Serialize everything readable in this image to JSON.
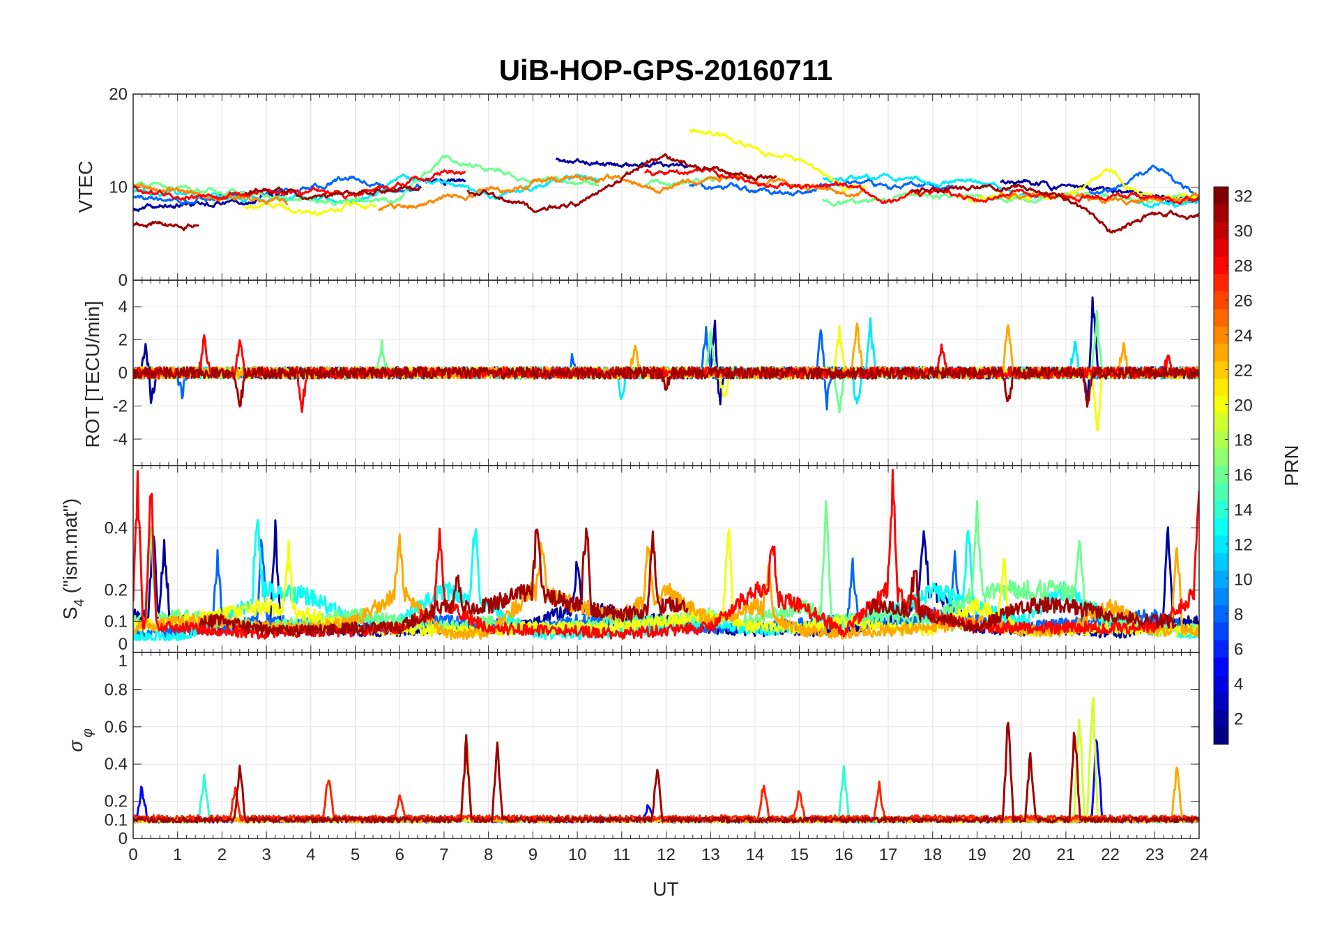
{
  "chart_data": {
    "type": "line",
    "title": "UiB-HOP-GPS-20160711",
    "xlabel": "UT",
    "xlim": [
      0,
      24
    ],
    "xticks": [
      0,
      1,
      2,
      3,
      4,
      5,
      6,
      7,
      8,
      9,
      10,
      11,
      12,
      13,
      14,
      15,
      16,
      17,
      18,
      19,
      20,
      21,
      22,
      23,
      24
    ],
    "grid": true,
    "colorbar": {
      "label": "PRN",
      "range": [
        1,
        32
      ],
      "ticks": [
        2,
        4,
        6,
        8,
        10,
        12,
        14,
        16,
        18,
        20,
        22,
        24,
        26,
        28,
        30,
        32
      ],
      "colormap": "jet"
    },
    "panels": [
      {
        "name": "vtec",
        "ylabel": "VTEC",
        "ylim": [
          0,
          20
        ],
        "yticks": [
          0,
          10,
          20
        ],
        "noise": 0.35,
        "series": [
          {
            "prn": 2,
            "values": [
              7.5,
              8,
              8.5,
              9,
              null,
              null,
              null,
              10.5,
              null,
              null,
              13,
              12.5,
              12,
              null,
              null,
              null,
              null,
              null,
              null,
              null,
              10.5,
              10,
              9.5,
              9,
              8.5
            ]
          },
          {
            "prn": 8,
            "values": [
              9,
              8.5,
              9,
              9.5,
              10,
              11,
              10,
              null,
              null,
              null,
              null,
              null,
              null,
              10,
              9.5,
              9.5,
              10.5,
              10,
              10,
              null,
              null,
              null,
              9.5,
              12,
              9
            ]
          },
          {
            "prn": 12,
            "values": [
              9.5,
              9.5,
              8.5,
              9,
              9,
              8.5,
              11,
              10.5,
              9,
              10,
              11,
              null,
              null,
              null,
              null,
              null,
              11,
              11,
              10.5,
              11,
              9,
              null,
              null,
              8.5,
              8
            ]
          },
          {
            "prn": 16,
            "values": [
              10,
              10,
              9.5,
              9,
              8.5,
              8.5,
              9,
              13,
              12,
              11,
              10.5,
              null,
              10.5,
              11,
              null,
              null,
              8.5,
              9,
              9,
              9,
              8.5,
              9,
              9,
              8.5,
              9
            ]
          },
          {
            "prn": 20,
            "values": [
              null,
              null,
              null,
              8,
              7,
              8,
              null,
              null,
              null,
              null,
              null,
              null,
              null,
              16,
              14,
              13,
              10,
              null,
              null,
              9,
              9,
              9,
              12,
              8.5,
              9
            ]
          },
          {
            "prn": 24,
            "values": [
              10,
              9.5,
              9,
              8.5,
              null,
              null,
              8,
              9,
              9.5,
              10.5,
              11,
              11,
              10,
              11,
              11,
              10,
              9.5,
              null,
              null,
              null,
              9,
              9,
              8.5,
              8.5,
              9
            ]
          },
          {
            "prn": 28,
            "values": [
              10,
              9,
              9,
              9.5,
              9.5,
              9,
              10.5,
              11.5,
              null,
              null,
              null,
              null,
              11.5,
              11.5,
              10.5,
              10,
              10.5,
              8.5,
              9.5,
              9,
              9.5,
              9,
              9,
              9,
              8.5
            ]
          },
          {
            "prn": 31,
            "values": [
              6,
              6,
              null,
              9.5,
              9,
              9.5,
              10,
              null,
              9.5,
              7.5,
              8,
              11,
              13,
              12,
              11,
              null,
              null,
              null,
              9.5,
              10,
              10,
              9,
              5,
              7,
              7
            ]
          }
        ]
      },
      {
        "name": "rot",
        "ylabel": "ROT [TECU/min]",
        "ylim": [
          -5.6,
          5.6
        ],
        "yticks": [
          -4,
          -2,
          0,
          2,
          4
        ],
        "noise": 0.35,
        "series": [
          {
            "prn": 2,
            "base": 0,
            "peaks": [
              [
                0.3,
                2.2
              ],
              [
                0.4,
                -2
              ],
              [
                13.1,
                3.3
              ],
              [
                13.2,
                -2.4
              ],
              [
                21.6,
                5.5
              ],
              [
                21.5,
                -2.5
              ]
            ]
          },
          {
            "prn": 8,
            "base": 0,
            "peaks": [
              [
                15.5,
                3.5
              ],
              [
                15.6,
                -2.6
              ],
              [
                12.9,
                2.7
              ],
              [
                9.9,
                1
              ],
              [
                1.1,
                -1.5
              ]
            ]
          },
          {
            "prn": 12,
            "base": 0,
            "peaks": [
              [
                16.6,
                3.3
              ],
              [
                16.3,
                -2.4
              ],
              [
                21.2,
                2
              ],
              [
                11,
                -2
              ]
            ]
          },
          {
            "prn": 16,
            "base": 0,
            "peaks": [
              [
                5.6,
                2
              ],
              [
                13,
                2.5
              ],
              [
                15.9,
                -2.8
              ],
              [
                21.7,
                3.8
              ]
            ]
          },
          {
            "prn": 20,
            "base": 0,
            "peaks": [
              [
                15.9,
                3
              ],
              [
                21.7,
                -4
              ],
              [
                13.3,
                -2
              ]
            ]
          },
          {
            "prn": 23,
            "base": 0,
            "peaks": [
              [
                19.7,
                3.6
              ],
              [
                16.3,
                3.4
              ],
              [
                11.3,
                2
              ],
              [
                22.3,
                2
              ]
            ]
          },
          {
            "prn": 28,
            "base": 0,
            "peaks": [
              [
                1.6,
                2.1
              ],
              [
                2.4,
                2.1
              ],
              [
                3.8,
                -2.4
              ],
              [
                18.2,
                1.9
              ],
              [
                23.3,
                1
              ]
            ]
          },
          {
            "prn": 31,
            "base": 0,
            "peaks": [
              [
                2.4,
                -2.4
              ],
              [
                19.7,
                -2.3
              ],
              [
                21.5,
                -2.2
              ],
              [
                12,
                -1
              ]
            ]
          }
        ]
      },
      {
        "name": "s4",
        "ylabel": "S4 (\"ism.mat\")",
        "ylabel_main": "S",
        "ylabel_sub": "4",
        "ylabel_rest": " (\"ism.mat\")",
        "ylim": [
          0,
          0.6
        ],
        "yticks": [
          0,
          0.1,
          0.2,
          0.4
        ],
        "noise": 0.03,
        "series": [
          {
            "prn": 2,
            "base": [
              0.12,
              0.1,
              0.08,
              0.08,
              0.07,
              0.07,
              0.07,
              0.08,
              0.07,
              0.09,
              0.15,
              0.12,
              0.1,
              0.08,
              0.07,
              0.07,
              0.07,
              0.1,
              0.2,
              0.08,
              0.07,
              0.07,
              0.06,
              0.08,
              0.1
            ],
            "peaks": [
              [
                0.45,
                0.43
              ],
              [
                0.7,
                0.4
              ],
              [
                3.2,
                0.42
              ],
              [
                10,
                0.3
              ],
              [
                17.8,
                0.45
              ],
              [
                23.3,
                0.45
              ]
            ]
          },
          {
            "prn": 8,
            "base": [
              0.06,
              0.07,
              0.08,
              0.1,
              0.09,
              0.08,
              0.08,
              0.1,
              0.09,
              0.08,
              0.1,
              0.1,
              0.09,
              0.08,
              0.08,
              0.09,
              0.1,
              0.09,
              0.12,
              0.1,
              0.08,
              0.09,
              0.1,
              0.12,
              0.06
            ],
            "peaks": [
              [
                1.9,
                0.35
              ],
              [
                2.9,
                0.4
              ],
              [
                16.2,
                0.3
              ],
              [
                18.5,
                0.34
              ]
            ]
          },
          {
            "prn": 13,
            "base": [
              0.05,
              0.05,
              0.1,
              0.2,
              0.18,
              0.1,
              0.1,
              0.2,
              0.15,
              0.06,
              0.06,
              0.07,
              0.08,
              0.1,
              0.07,
              0.08,
              0.1,
              0.12,
              0.2,
              0.15,
              0.1,
              0.2,
              0.1,
              0.07,
              0.06
            ],
            "peaks": [
              [
                2.8,
                0.5
              ],
              [
                7.7,
                0.46
              ],
              [
                18.8,
                0.42
              ]
            ]
          },
          {
            "prn": 16,
            "base": [
              0.1,
              0.12,
              0.1,
              0.08,
              0.1,
              0.12,
              0.1,
              0.08,
              0.1,
              0.08,
              0.08,
              0.1,
              0.1,
              0.12,
              0.1,
              0.15,
              0.1,
              0.12,
              0.1,
              0.2,
              0.2,
              0.2,
              0.1,
              0.08,
              0.07
            ],
            "peaks": [
              [
                0.4,
                0.43
              ],
              [
                15.6,
                0.54
              ],
              [
                19,
                0.49
              ],
              [
                21.3,
                0.4
              ]
            ]
          },
          {
            "prn": 20,
            "base": [
              0.08,
              0.1,
              0.12,
              0.15,
              0.12,
              0.08,
              0.07,
              0.07,
              0.07,
              0.08,
              0.08,
              0.08,
              0.1,
              0.12,
              0.08,
              0.08,
              0.1,
              0.08,
              0.07,
              0.15,
              0.07,
              0.07,
              0.08,
              0.07,
              0.07
            ],
            "peaks": [
              [
                3.5,
                0.35
              ],
              [
                13.4,
                0.44
              ],
              [
                19.6,
                0.33
              ]
            ]
          },
          {
            "prn": 23,
            "base": [
              0.08,
              0.1,
              0.1,
              0.08,
              0.08,
              0.1,
              0.2,
              0.06,
              0.06,
              0.2,
              0.15,
              0.12,
              0.2,
              0.1,
              0.15,
              0.07,
              0.06,
              0.07,
              0.08,
              0.1,
              0.07,
              0.07,
              0.15,
              0.07,
              0.07
            ],
            "peaks": [
              [
                6,
                0.38
              ],
              [
                9.2,
                0.38
              ],
              [
                14.3,
                0.3
              ],
              [
                23.5,
                0.4
              ],
              [
                11.6,
                0.36
              ]
            ]
          },
          {
            "prn": 28,
            "base": [
              0.1,
              0.08,
              0.07,
              0.06,
              0.07,
              0.07,
              0.08,
              0.15,
              0.08,
              0.07,
              0.07,
              0.06,
              0.07,
              0.08,
              0.2,
              0.15,
              0.07,
              0.2,
              0.12,
              0.08,
              0.08,
              0.08,
              0.08,
              0.08,
              0.2
            ],
            "peaks": [
              [
                0.1,
                0.6
              ],
              [
                0.4,
                0.6
              ],
              [
                6.9,
                0.42
              ],
              [
                14.4,
                0.41
              ],
              [
                17.1,
                0.6
              ],
              [
                24,
                0.58
              ]
            ]
          },
          {
            "prn": 31,
            "base": [
              null,
              null,
              0.1,
              0.07,
              0.07,
              0.08,
              0.08,
              0.15,
              0.15,
              0.2,
              0.15,
              0.12,
              0.15,
              null,
              null,
              null,
              null,
              0.15,
              0.12,
              0.08,
              0.15,
              0.15,
              0.12,
              0.1,
              null
            ],
            "peaks": [
              [
                9.1,
                0.46
              ],
              [
                10.2,
                0.46
              ],
              [
                11.7,
                0.43
              ],
              [
                7.3,
                0.27
              ],
              [
                17.6,
                0.3
              ]
            ]
          }
        ]
      },
      {
        "name": "sigma_phi",
        "ylabel": "σφ",
        "ylabel_main": "σ",
        "ylabel_sub": "φ",
        "ylim": [
          0,
          1
        ],
        "yticks": [
          0,
          0.1,
          0.2,
          0.4,
          0.6,
          0.8,
          1
        ],
        "noise": 0.02,
        "series": [
          {
            "prn": 5,
            "base": 0.1,
            "peaks": [
              [
                0.2,
                0.3
              ],
              [
                21.7,
                0.65
              ],
              [
                11.6,
                0.2
              ]
            ]
          },
          {
            "prn": 14,
            "base": 0.1,
            "peaks": [
              [
                1.6,
                0.4
              ],
              [
                16,
                0.4
              ]
            ]
          },
          {
            "prn": 19,
            "base": 0.1,
            "peaks": [
              [
                21.3,
                0.8
              ],
              [
                21.6,
                0.93
              ]
            ]
          },
          {
            "prn": 23,
            "base": 0.1,
            "peaks": [
              [
                7.5,
                0.6
              ],
              [
                23.5,
                0.42
              ]
            ]
          },
          {
            "prn": 27,
            "base": 0.11,
            "peaks": [
              [
                4.4,
                0.38
              ],
              [
                14.2,
                0.33
              ],
              [
                16.8,
                0.3
              ],
              [
                2.3,
                0.3
              ],
              [
                6,
                0.25
              ],
              [
                15,
                0.28
              ]
            ]
          },
          {
            "prn": 31,
            "base": 0.1,
            "peaks": [
              [
                2.4,
                0.43
              ],
              [
                7.5,
                0.57
              ],
              [
                8.2,
                0.54
              ],
              [
                11.8,
                0.43
              ],
              [
                19.7,
                0.74
              ],
              [
                20.2,
                0.5
              ],
              [
                21.2,
                0.67
              ]
            ]
          }
        ]
      }
    ]
  }
}
